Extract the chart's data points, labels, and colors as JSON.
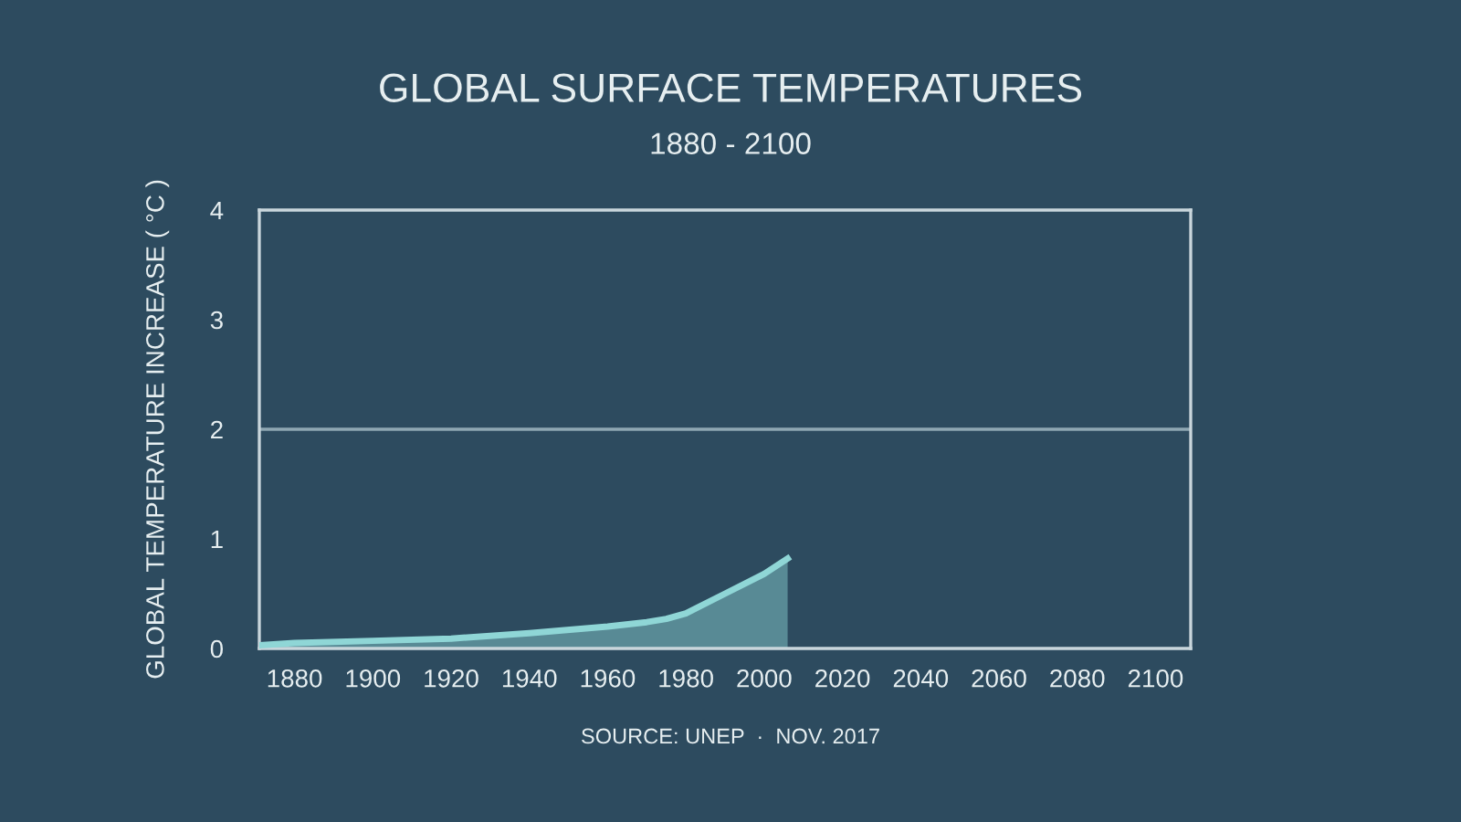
{
  "chart_data": {
    "type": "area",
    "title": "GLOBAL SURFACE TEMPERATURES",
    "subtitle": "1880 - 2100",
    "ylabel": "GLOBAL TEMPERATURE INCREASE ( °C )",
    "annotations": [
      "SOURCE: UNEP  ·  NOV. 2017"
    ],
    "x": [
      1871,
      1880,
      1900,
      1920,
      1940,
      1960,
      1970,
      1975,
      1980,
      1990,
      2000,
      2006
    ],
    "series": [
      {
        "color": "#8fd6d6",
        "values": [
          0.03,
          0.05,
          0.07,
          0.09,
          0.14,
          0.2,
          0.24,
          0.27,
          0.32,
          0.5,
          0.68,
          0.82
        ]
      }
    ],
    "xlim": [
      1871,
      2109
    ],
    "xticks": [
      1880,
      1900,
      1920,
      1940,
      1960,
      1980,
      2000,
      2020,
      2040,
      2060,
      2080,
      2100
    ],
    "ylim": [
      0,
      4
    ],
    "yticks": [
      0,
      1,
      2,
      3,
      4
    ],
    "ref_lines": [
      {
        "axis": "y",
        "value": 2,
        "color": "#8fa7b3"
      }
    ],
    "grid": false,
    "legend": false
  }
}
